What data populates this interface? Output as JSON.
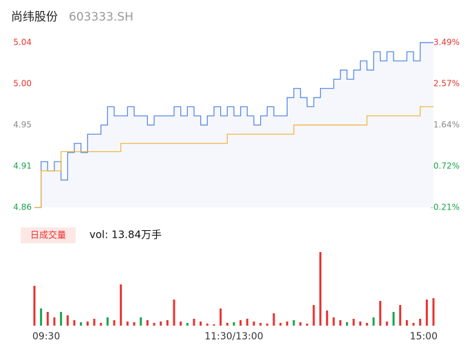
{
  "header": {
    "name": "尚纬股份",
    "code": "603333.SH"
  },
  "chart_data": [
    {
      "type": "line",
      "x": [
        0,
        4,
        8,
        12,
        16,
        20,
        24,
        28,
        32,
        36,
        40,
        44,
        48,
        52,
        56,
        60,
        64,
        68,
        72,
        76,
        80,
        84,
        88,
        92,
        96,
        100,
        104,
        108,
        112,
        116,
        120,
        124,
        128,
        132,
        136,
        140,
        144,
        148,
        152,
        156,
        160,
        164,
        168,
        172,
        176,
        180,
        184,
        188,
        192,
        196,
        200,
        204,
        208,
        212,
        216,
        220,
        224,
        228,
        232,
        236,
        240
      ],
      "xlim": [
        0,
        240
      ],
      "xticks": [
        {
          "value": 0,
          "label": "09:30"
        },
        {
          "value": 120,
          "label": "11:30/13:00"
        },
        {
          "value": 240,
          "label": "15:00"
        }
      ],
      "ylim": [
        4.86,
        5.04
      ],
      "yticks": [
        4.86,
        {
          "value": 4.905,
          "label": "4.91"
        },
        4.95,
        {
          "value": 4.995,
          "label": "5.00"
        },
        5.04
      ],
      "ytick_colors": [
        "#1aa34a",
        "#1aa34a",
        "#888888",
        "#e8322e",
        "#e8322e"
      ],
      "y2lim": [
        -0.21,
        3.49
      ],
      "y2ticks": [
        {
          "value": -0.21,
          "label": "-0.21%"
        },
        {
          "value": 0.715,
          "label": "0.72%"
        },
        {
          "value": 1.64,
          "label": "1.64%"
        },
        {
          "value": 2.565,
          "label": "2.57%"
        },
        {
          "value": 3.49,
          "label": "3.49%"
        }
      ],
      "series": [
        {
          "name": "price",
          "color": "#4a7fe0",
          "values": [
            4.86,
            4.91,
            4.9,
            4.91,
            4.89,
            4.92,
            4.93,
            4.92,
            4.94,
            4.94,
            4.95,
            4.97,
            4.96,
            4.96,
            4.97,
            4.96,
            4.96,
            4.95,
            4.96,
            4.96,
            4.96,
            4.97,
            4.96,
            4.97,
            4.96,
            4.95,
            4.96,
            4.97,
            4.96,
            4.97,
            4.96,
            4.97,
            4.96,
            4.95,
            4.96,
            4.97,
            4.96,
            4.96,
            4.98,
            4.99,
            4.98,
            4.97,
            4.98,
            4.99,
            4.99,
            5.0,
            5.01,
            5.0,
            5.01,
            5.02,
            5.01,
            5.03,
            5.02,
            5.03,
            5.02,
            5.02,
            5.03,
            5.02,
            5.04,
            5.04,
            5.04
          ]
        },
        {
          "name": "average",
          "color": "#f0b030",
          "values": [
            4.86,
            4.9,
            4.9,
            4.9,
            4.921,
            4.921,
            4.921,
            4.921,
            4.921,
            4.921,
            4.921,
            4.921,
            4.921,
            4.93,
            4.93,
            4.93,
            4.93,
            4.93,
            4.93,
            4.93,
            4.93,
            4.93,
            4.93,
            4.93,
            4.93,
            4.93,
            4.93,
            4.93,
            4.93,
            4.94,
            4.94,
            4.94,
            4.94,
            4.94,
            4.94,
            4.94,
            4.94,
            4.94,
            4.94,
            4.95,
            4.95,
            4.95,
            4.95,
            4.95,
            4.95,
            4.95,
            4.95,
            4.95,
            4.95,
            4.95,
            4.96,
            4.96,
            4.96,
            4.96,
            4.96,
            4.96,
            4.96,
            4.96,
            4.97,
            4.97,
            4.97
          ]
        }
      ]
    },
    {
      "type": "bar",
      "label": "日成交量",
      "total": "vol: 13.84万手",
      "values": [
        58,
        25,
        20,
        12,
        20,
        15,
        8,
        5,
        6,
        10,
        4,
        12,
        8,
        60,
        6,
        5,
        12,
        8,
        4,
        6,
        8,
        38,
        6,
        4,
        10,
        6,
        3,
        2,
        25,
        4,
        5,
        8,
        10,
        6,
        4,
        3,
        18,
        4,
        6,
        8,
        5,
        3,
        30,
        107,
        22,
        12,
        8,
        5,
        10,
        6,
        4,
        12,
        36,
        6,
        20,
        30,
        8,
        4,
        10,
        38,
        40
      ],
      "colors": [
        "#e8322e",
        "#1aa34a",
        "#e8322e",
        "#e8322e",
        "#1aa34a",
        "#e8322e",
        "#e8322e",
        "#1aa34a",
        "#e8322e",
        "#e8322e",
        "#e8322e",
        "#1aa34a",
        "#e8322e",
        "#e8322e",
        "#e8322e",
        "#e8322e",
        "#1aa34a",
        "#e8322e",
        "#e8322e",
        "#e8322e",
        "#e8322e",
        "#e8322e",
        "#e8322e",
        "#1aa34a",
        "#e8322e",
        "#e8322e",
        "#e8322e",
        "#e8322e",
        "#e8322e",
        "#e8322e",
        "#1aa34a",
        "#e8322e",
        "#e8322e",
        "#e8322e",
        "#e8322e",
        "#e8322e",
        "#e8322e",
        "#e8322e",
        "#e8322e",
        "#1aa34a",
        "#e8322e",
        "#e8322e",
        "#e8322e",
        "#e8322e",
        "#e8322e",
        "#e8322e",
        "#e8322e",
        "#1aa34a",
        "#e8322e",
        "#e8322e",
        "#e8322e",
        "#1aa34a",
        "#e8322e",
        "#e8322e",
        "#1aa34a",
        "#e8322e",
        "#e8322e",
        "#e8322e",
        "#e8322e",
        "#e8322e",
        "#e8322e"
      ]
    }
  ]
}
